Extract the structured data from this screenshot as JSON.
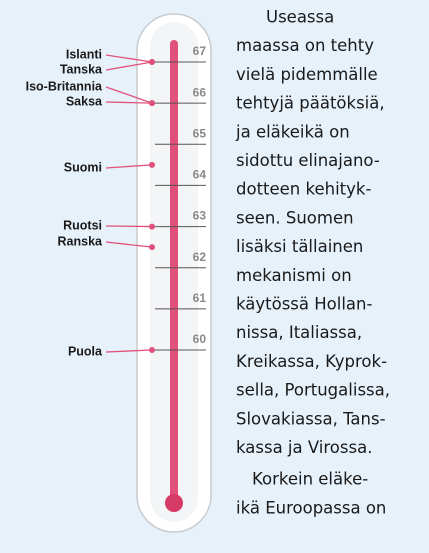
{
  "chart_data": {
    "type": "thermometer",
    "categories": [
      "Islanti",
      "Tanska",
      "Iso-Britannia",
      "Saksa",
      "Suomi",
      "Ruotsi",
      "Ranska",
      "Puola"
    ],
    "values": [
      67,
      67,
      66,
      66,
      64.5,
      63,
      62.5,
      60
    ],
    "color": "#e0507a",
    "ylim": [
      60,
      67
    ],
    "yticks": [
      60,
      61,
      62,
      63,
      64,
      65,
      66,
      67
    ]
  },
  "text": {
    "lines": [
      "Useassa",
      "maassa on tehty",
      "vielä pidemmälle",
      "tehtyjä päätöksiä,",
      "ja eläkeikä on",
      "sidottu elinajano-",
      "dotteen kehityk-",
      "seen. Suomen",
      "lisäksi tällainen",
      "mekanismi on",
      "käytössä Hollan-",
      "nissa, Italiassa,",
      "Kreikassa, Kyprok-",
      "sella, Portugalissa,",
      "Slovakiassa, Tans-",
      "kassa ja Virossa.",
      "Korkein eläke-",
      "ikä Euroopassa on"
    ]
  }
}
